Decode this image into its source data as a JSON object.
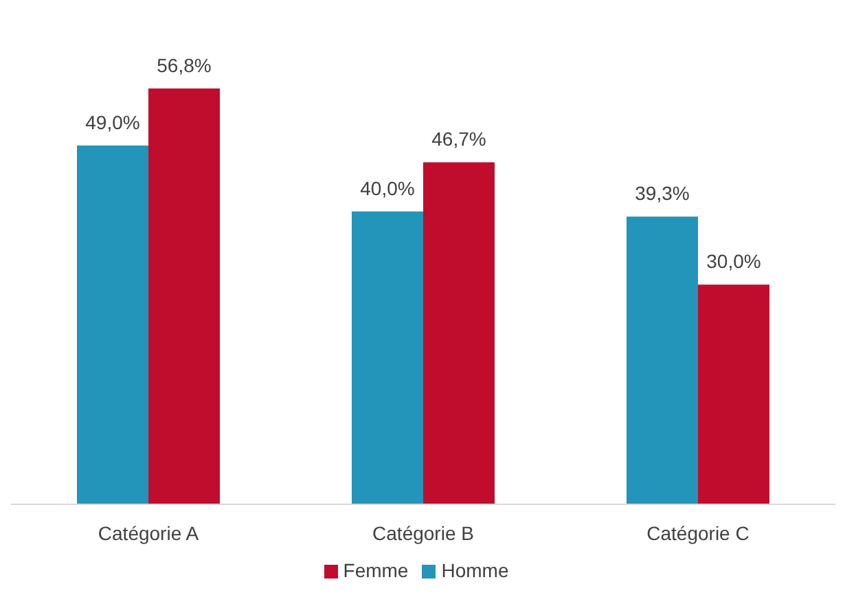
{
  "chart_data": {
    "type": "bar",
    "categories": [
      "Catégorie A",
      "Catégorie B",
      "Catégorie C"
    ],
    "series": [
      {
        "name": "Homme",
        "color": "#2394ba",
        "values": [
          49.0,
          40.0,
          39.3
        ],
        "value_labels": [
          "49,0%",
          "40,0%",
          "39,3%"
        ]
      },
      {
        "name": "Femme",
        "color": "#c00d2e",
        "values": [
          56.8,
          46.7,
          30.0
        ],
        "value_labels": [
          "56,8%",
          "46,7%",
          "30,0%"
        ]
      }
    ],
    "legend": "bottom",
    "grid": false
  }
}
